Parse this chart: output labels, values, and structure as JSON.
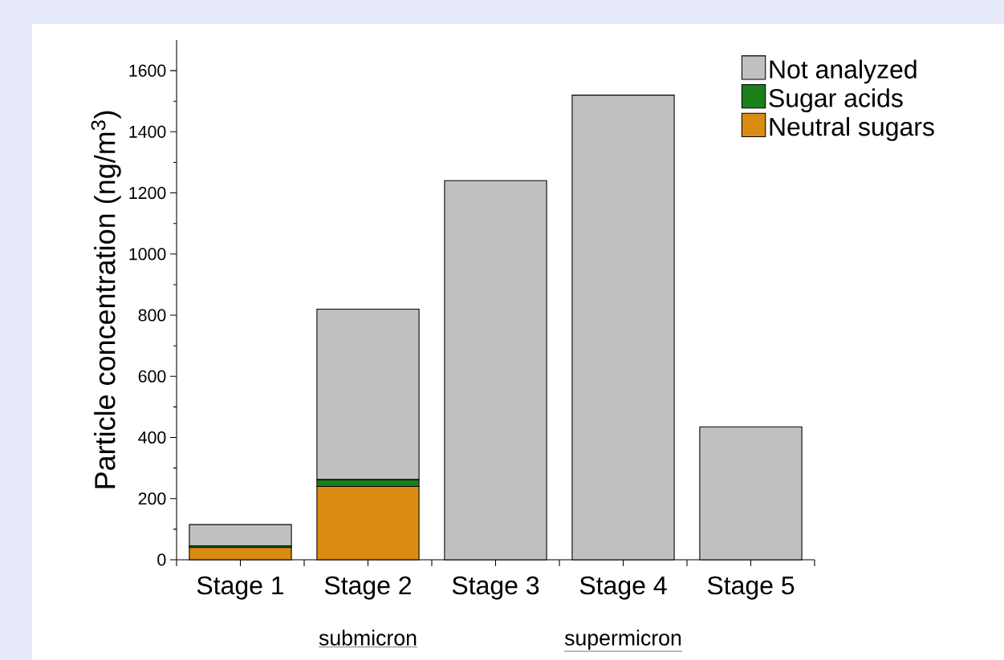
{
  "chart_data": {
    "type": "bar",
    "stacked": true,
    "ylabel": "Particle concentration (ng/m$^{3}$)",
    "categories": [
      "Stage 1",
      "Stage 2",
      "Stage 3",
      "Stage 4",
      "Stage 5"
    ],
    "series": [
      {
        "name": "Neutral sugars",
        "color": "#d98b12",
        "values": [
          40,
          240,
          0,
          0,
          0
        ]
      },
      {
        "name": "Sugar acids",
        "color": "#1b7f1b",
        "values": [
          5,
          22,
          0,
          0,
          0
        ]
      },
      {
        "name": "Not analyzed",
        "color": "#c0c0c0",
        "values": [
          70,
          558,
          1240,
          1520,
          435
        ]
      }
    ],
    "ylim": [
      0,
      1700
    ],
    "yticks": [
      0,
      200,
      400,
      600,
      800,
      1000,
      1200,
      1400,
      1600
    ],
    "legend": "top right",
    "annotations": [
      "submicron",
      "supermicron"
    ]
  }
}
